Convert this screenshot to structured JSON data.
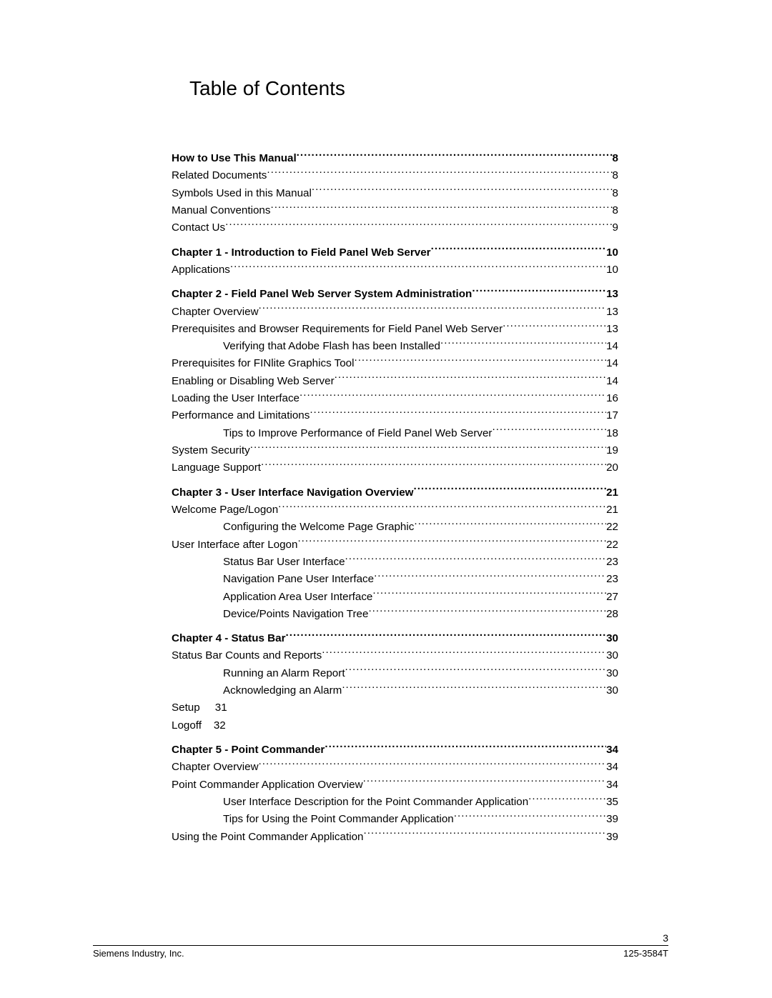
{
  "title": "Table of Contents",
  "footer": {
    "page_number": "3",
    "left": "Siemens Industry, Inc.",
    "right": "125-3584T"
  },
  "entries": [
    {
      "label": "How to Use This Manual ",
      "page": "8",
      "bold": true,
      "indent": 0,
      "dots": true
    },
    {
      "label": "Related Documents ",
      "page": "8",
      "bold": false,
      "indent": 0,
      "dots": true
    },
    {
      "label": "Symbols Used in this Manual ",
      "page": "8",
      "bold": false,
      "indent": 0,
      "dots": true
    },
    {
      "label": "Manual Conventions",
      "page": "8",
      "bold": false,
      "indent": 0,
      "dots": true
    },
    {
      "label": "Contact Us",
      "page": "9",
      "bold": false,
      "indent": 0,
      "dots": true
    },
    {
      "label": "Chapter 1 - Introduction to Field Panel Web Server ",
      "page": "10",
      "bold": true,
      "indent": 0,
      "dots": true
    },
    {
      "label": "Applications ",
      "page": "10",
      "bold": false,
      "indent": 0,
      "dots": true
    },
    {
      "label": "Chapter 2 - Field Panel Web Server System Administration",
      "page": "13",
      "bold": true,
      "indent": 0,
      "dots": true
    },
    {
      "label": "Chapter Overview",
      "page": "13",
      "bold": false,
      "indent": 0,
      "dots": true
    },
    {
      "label": "Prerequisites and Browser Requirements for Field Panel Web Server ",
      "page": "13",
      "bold": false,
      "indent": 0,
      "dots": true
    },
    {
      "label": "Verifying that Adobe Flash has been Installed",
      "page": "14",
      "bold": false,
      "indent": 1,
      "dots": true
    },
    {
      "label": "Prerequisites for FINlite Graphics Tool",
      "page": "14",
      "bold": false,
      "indent": 0,
      "dots": true
    },
    {
      "label": "Enabling or Disabling Web Server",
      "page": "14",
      "bold": false,
      "indent": 0,
      "dots": true
    },
    {
      "label": "Loading the User Interface ",
      "page": "16",
      "bold": false,
      "indent": 0,
      "dots": true
    },
    {
      "label": "Performance and Limitations",
      "page": "17",
      "bold": false,
      "indent": 0,
      "dots": true
    },
    {
      "label": "Tips to Improve Performance of Field Panel Web Server",
      "page": "18",
      "bold": false,
      "indent": 1,
      "dots": true
    },
    {
      "label": "System Security",
      "page": "19",
      "bold": false,
      "indent": 0,
      "dots": true
    },
    {
      "label": "Language Support",
      "page": "20",
      "bold": false,
      "indent": 0,
      "dots": true
    },
    {
      "label": "Chapter 3 - User Interface Navigation Overview ",
      "page": "21",
      "bold": true,
      "indent": 0,
      "dots": true
    },
    {
      "label": "Welcome Page/Logon ",
      "page": "21",
      "bold": false,
      "indent": 0,
      "dots": true
    },
    {
      "label": "Configuring the Welcome Page Graphic",
      "page": "22",
      "bold": false,
      "indent": 1,
      "dots": true
    },
    {
      "label": "User Interface after Logon",
      "page": "22",
      "bold": false,
      "indent": 0,
      "dots": true
    },
    {
      "label": "Status Bar User Interface",
      "page": "23",
      "bold": false,
      "indent": 1,
      "dots": true
    },
    {
      "label": "Navigation Pane User Interface ",
      "page": "23",
      "bold": false,
      "indent": 1,
      "dots": true
    },
    {
      "label": "Application Area User Interface ",
      "page": "27",
      "bold": false,
      "indent": 1,
      "dots": true
    },
    {
      "label": "Device/Points Navigation Tree",
      "page": "28",
      "bold": false,
      "indent": 1,
      "dots": true
    },
    {
      "label": "Chapter 4 - Status Bar",
      "page": "30",
      "bold": true,
      "indent": 0,
      "dots": true
    },
    {
      "label": "Status Bar Counts and Reports",
      "page": "30",
      "bold": false,
      "indent": 0,
      "dots": true
    },
    {
      "label": "Running an Alarm Report",
      "page": "30",
      "bold": false,
      "indent": 1,
      "dots": true
    },
    {
      "label": "Acknowledging an Alarm",
      "page": "30",
      "bold": false,
      "indent": 1,
      "dots": true
    },
    {
      "label": "Setup     31",
      "page": "",
      "bold": false,
      "indent": 0,
      "dots": false
    },
    {
      "label": "Logoff    32",
      "page": "",
      "bold": false,
      "indent": 0,
      "dots": false
    },
    {
      "label": "Chapter 5 - Point Commander",
      "page": "34",
      "bold": true,
      "indent": 0,
      "dots": true
    },
    {
      "label": "Chapter Overview",
      "page": "34",
      "bold": false,
      "indent": 0,
      "dots": true
    },
    {
      "label": "Point Commander Application Overview ",
      "page": "34",
      "bold": false,
      "indent": 0,
      "dots": true
    },
    {
      "label": "User Interface Description for the Point Commander Application",
      "page": "35",
      "bold": false,
      "indent": 1,
      "dots": true
    },
    {
      "label": "Tips for Using the Point Commander Application ",
      "page": "39",
      "bold": false,
      "indent": 1,
      "dots": true
    },
    {
      "label": "Using the Point Commander Application",
      "page": "39",
      "bold": false,
      "indent": 0,
      "dots": true
    }
  ]
}
